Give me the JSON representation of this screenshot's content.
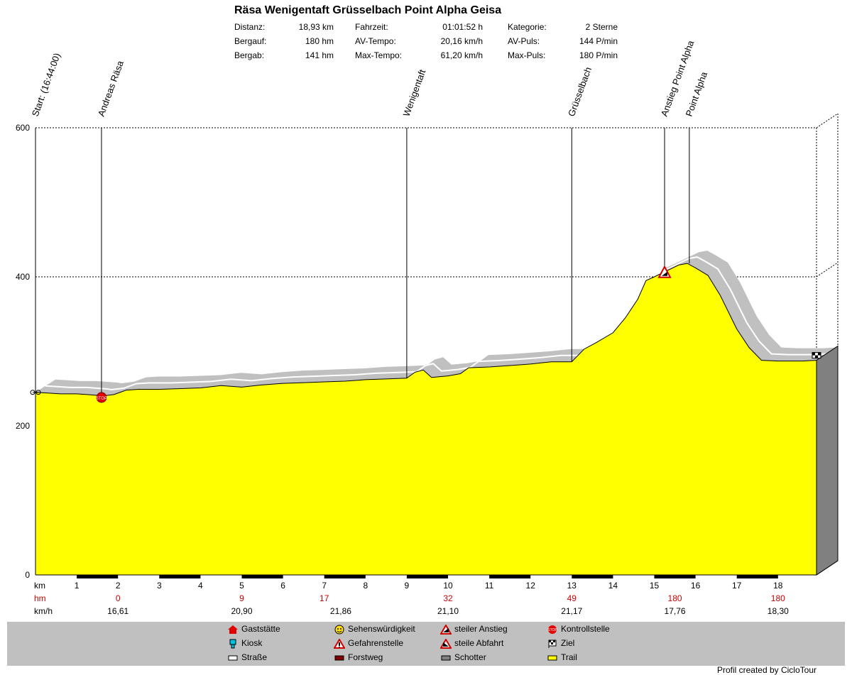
{
  "chart_data": {
    "type": "area",
    "title": "Räsa Wenigentaft Grüsselbach Point Alpha Geisa",
    "xlabel": "km",
    "ylim": [
      0,
      600
    ],
    "xlim": [
      0,
      18.93
    ],
    "y_ticks": [
      "0",
      "200",
      "400",
      "600"
    ],
    "x_ticks": [
      "1",
      "2",
      "3",
      "4",
      "5",
      "6",
      "7",
      "8",
      "9",
      "10",
      "11",
      "12",
      "13",
      "14",
      "15",
      "16",
      "17",
      "18"
    ],
    "grid": true,
    "fill_color": "#ffff00",
    "shadow_color": "#c0c0c0",
    "stats": [
      {
        "label": "Distanz:",
        "value": "18,93 km"
      },
      {
        "label": "Bergauf:",
        "value": "180 hm"
      },
      {
        "label": "Bergab:",
        "value": "141 hm"
      },
      {
        "label": "Fahrzeit:",
        "value": "01:01:52 h"
      },
      {
        "label": "AV-Tempo:",
        "value": "20,16 km/h"
      },
      {
        "label": "Max-Tempo:",
        "value": "61,20 km/h"
      },
      {
        "label": "Kategorie:",
        "value": "2 Sterne"
      },
      {
        "label": "AV-Puls:",
        "value": "144 P/min"
      },
      {
        "label": "Max-Puls:",
        "value": "180 P/min"
      }
    ],
    "elevation_profile": {
      "x": [
        0,
        0.3,
        0.6,
        1,
        1.5,
        1.6,
        1.9,
        2.2,
        2.5,
        3,
        4,
        4.5,
        5,
        5.5,
        6,
        6.5,
        7,
        7.5,
        8,
        8.5,
        9,
        9.2,
        9.4,
        9.6,
        10,
        10.3,
        10.5,
        11,
        11.5,
        12,
        12.5,
        13,
        13.3,
        13.6,
        14,
        14.3,
        14.6,
        14.8,
        15,
        15.3,
        15.6,
        15.8,
        16,
        16.3,
        16.6,
        17,
        17.3,
        17.6,
        18,
        18.3,
        18.6,
        18.93
      ],
      "y": [
        245,
        244,
        243,
        243,
        241,
        240,
        242,
        248,
        249,
        249,
        251,
        254,
        252,
        255,
        257,
        258,
        259,
        260,
        262,
        263,
        264,
        272,
        275,
        265,
        267,
        270,
        278,
        279,
        281,
        283,
        286,
        286,
        303,
        312,
        325,
        345,
        370,
        395,
        400,
        408,
        416,
        418,
        412,
        402,
        375,
        330,
        305,
        288,
        287,
        287,
        287,
        288
      ]
    },
    "waypoints": [
      {
        "km": 0,
        "label": "Start: (16:44:00)"
      },
      {
        "km": 1.6,
        "label": "Andreas Räsa"
      },
      {
        "km": 9,
        "label": "Wenigentaft"
      },
      {
        "km": 13,
        "label": "Grüsselbach"
      },
      {
        "km": 15.25,
        "label": "Anstieg Point Alpha"
      },
      {
        "km": 15.85,
        "label": "Point Alpha"
      }
    ],
    "rows": [
      {
        "label": "km",
        "values": []
      },
      {
        "label": "hm",
        "values": [
          "0",
          "9",
          "17",
          "32",
          "49",
          "180",
          "180"
        ]
      },
      {
        "label": "km/h",
        "values": [
          "16,61",
          "20,90",
          "21,86",
          "21,10",
          "21,17",
          "17,76",
          "18,30"
        ]
      }
    ],
    "row_value_km": [
      2,
      5,
      8,
      11,
      14,
      17,
      18
    ],
    "row_hm_km": [
      2,
      5,
      7,
      10,
      13,
      15.5,
      18
    ],
    "row_kmh_km": [
      2,
      5,
      7.4,
      10,
      13,
      15.5,
      18
    ],
    "legend": [
      {
        "icon": "gaststaette-icon",
        "label": "Gaststätte"
      },
      {
        "icon": "kiosk-icon",
        "label": "Kiosk"
      },
      {
        "icon": "strasse-icon",
        "label": "Straße"
      },
      {
        "icon": "sehenswuerdigkeit-icon",
        "label": "Sehenswürdigkeit"
      },
      {
        "icon": "gefahrenstelle-icon",
        "label": "Gefahrenstelle"
      },
      {
        "icon": "forstweg-icon",
        "label": "Forstweg"
      },
      {
        "icon": "steiler-anstieg-icon",
        "label": "steiler Anstieg"
      },
      {
        "icon": "steile-abfahrt-icon",
        "label": "steile Abfahrt"
      },
      {
        "icon": "schotter-icon",
        "label": "Schotter"
      },
      {
        "icon": "kontrollstelle-icon",
        "label": "Kontrollstelle"
      },
      {
        "icon": "ziel-icon",
        "label": "Ziel"
      },
      {
        "icon": "trail-icon",
        "label": "Trail"
      }
    ],
    "footer": "Profil created by CicloTour"
  }
}
